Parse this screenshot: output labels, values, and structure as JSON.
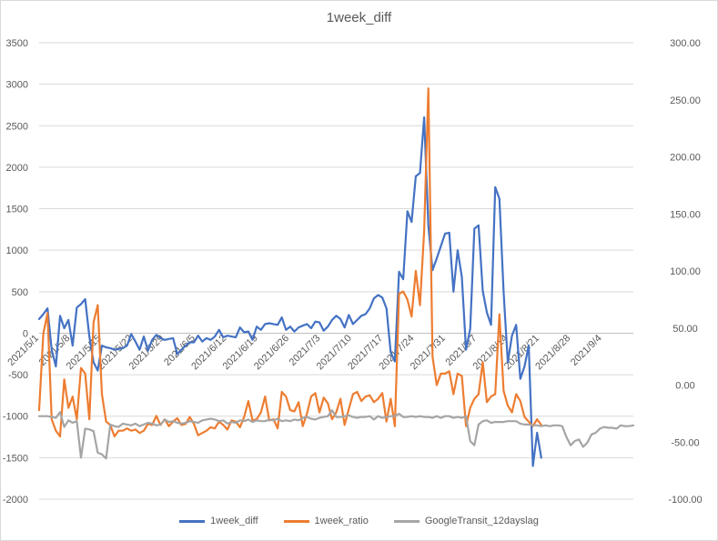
{
  "chart_data": {
    "type": "line",
    "title": "1week_diff",
    "x_tick_labels": [
      "2021/5/1",
      "2021/5/8",
      "2021/5/15",
      "2021/5/22",
      "2021/5/29",
      "2021/6/5",
      "2021/6/12",
      "2021/6/19",
      "2021/6/26",
      "2021/7/3",
      "2021/7/10",
      "2021/7/17",
      "2021/7/24",
      "2021/7/31",
      "2021/8/7",
      "2021/8/14",
      "2021/8/21",
      "2021/8/28",
      "2021/9/4"
    ],
    "x_start_date": "2021/5/1",
    "x_end_date": "2021/9/11",
    "y_left": {
      "ylim": [
        -2000,
        3500
      ],
      "ticks": [
        "-2000",
        "-1500",
        "-1000",
        "-500",
        "0",
        "500",
        "1000",
        "1500",
        "2000",
        "2500",
        "3000",
        "3500"
      ]
    },
    "y_right": {
      "ylim": [
        -100,
        300
      ],
      "ticks": [
        "-100.00",
        "-50.00",
        "0.00",
        "50.00",
        "100.00",
        "150.00",
        "200.00",
        "250.00",
        "300.00"
      ]
    },
    "grid": "horizontal",
    "legend_position": "bottom",
    "series": [
      {
        "name": "1week_diff",
        "axis": "left",
        "color": "#4472c4",
        "values": [
          170,
          230,
          300,
          -200,
          -400,
          210,
          60,
          160,
          -150,
          310,
          350,
          410,
          -40,
          -350,
          -450,
          -150,
          -170,
          -180,
          -200,
          -190,
          -180,
          -150,
          -10,
          -100,
          -200,
          -40,
          -210,
          -80,
          -20,
          -60,
          -80,
          -70,
          -60,
          -250,
          -200,
          -150,
          -110,
          -110,
          -30,
          -100,
          -60,
          -80,
          -40,
          40,
          -50,
          -30,
          -40,
          -50,
          70,
          10,
          20,
          -80,
          80,
          40,
          110,
          120,
          110,
          100,
          190,
          40,
          80,
          20,
          70,
          90,
          110,
          60,
          140,
          130,
          30,
          80,
          160,
          210,
          170,
          70,
          220,
          110,
          160,
          210,
          230,
          300,
          420,
          460,
          430,
          300,
          -230,
          -340,
          740,
          650,
          1470,
          1340,
          1890,
          1930,
          2600,
          1300,
          760,
          900,
          1050,
          1200,
          1210,
          500,
          1000,
          680,
          -200,
          50,
          1260,
          1300,
          510,
          250,
          100,
          1760,
          1620,
          500,
          -350,
          -30,
          100,
          -550,
          -400,
          -150,
          -1600,
          -1200,
          -1500
        ]
      },
      {
        "name": "1week_ratio",
        "axis": "right",
        "color": "#ed7d31",
        "values": [
          -22,
          45,
          63,
          -30,
          -40,
          -45,
          5,
          -20,
          -10,
          -30,
          15,
          10,
          -30,
          55,
          70,
          -8,
          -32,
          -35,
          -45,
          -40,
          -40,
          -38,
          -40,
          -39,
          -42,
          -40,
          -34,
          -35,
          -27,
          -35,
          -30,
          -36,
          -32,
          -29,
          -35,
          -34,
          -28,
          -34,
          -44,
          -42,
          -40,
          -37,
          -38,
          -32,
          -35,
          -39,
          -31,
          -32,
          -37,
          -28,
          -14,
          -31,
          -30,
          -24,
          -10,
          -31,
          -30,
          -38,
          -6,
          -10,
          -22,
          -23,
          -15,
          -36,
          -25,
          -10,
          -7,
          -24,
          -11,
          -16,
          -30,
          -24,
          -12,
          -35,
          -21,
          -8,
          -6,
          -14,
          -10,
          -9,
          -15,
          -12,
          -7,
          -32,
          -12,
          -36,
          80,
          82,
          75,
          60,
          100,
          70,
          135,
          260,
          25,
          0,
          10,
          10,
          12,
          -8,
          10,
          8,
          -36,
          -20,
          -12,
          -8,
          20,
          -15,
          -10,
          -8,
          62,
          -5,
          -18,
          -24,
          -8,
          -14,
          -28,
          -32,
          -36,
          -30,
          -35
        ]
      },
      {
        "name": "GoogleTransit_12dayslag",
        "axis": "left",
        "color": "#a5a5a5",
        "values": [
          -1000,
          -1000,
          -1000,
          -1010,
          -1020,
          -950,
          -1130,
          -1050,
          -1080,
          -1060,
          -1500,
          -1150,
          -1160,
          -1180,
          -1440,
          -1460,
          -1510,
          -1100,
          -1120,
          -1130,
          -1090,
          -1100,
          -1110,
          -1090,
          -1120,
          -1100,
          -1080,
          -1090,
          -1110,
          -1100,
          -1040,
          -1070,
          -1060,
          -1080,
          -1090,
          -1080,
          -1060,
          -1070,
          -1080,
          -1050,
          -1040,
          -1030,
          -1040,
          -1060,
          -1050,
          -1090,
          -1070,
          -1080,
          -1050,
          -1060,
          -1040,
          -1070,
          -1050,
          -1060,
          -1060,
          -1040,
          -1050,
          -1030,
          -1060,
          -1050,
          -1060,
          -1040,
          -1050,
          -1020,
          -1010,
          -1030,
          -1040,
          -1020,
          -1010,
          -1000,
          -930,
          -1010,
          -1010,
          -1000,
          -990,
          -1010,
          -1020,
          -1010,
          -1010,
          -1000,
          -1040,
          -1000,
          -1020,
          -1010,
          -1000,
          -1000,
          -970,
          -1010,
          -1010,
          -1000,
          -1010,
          -1000,
          -1010,
          -1010,
          -1020,
          -1000,
          -1020,
          -1000,
          -1000,
          -1020,
          -1010,
          -1020,
          -1000,
          -1300,
          -1350,
          -1100,
          -1060,
          -1050,
          -1080,
          -1070,
          -1070,
          -1070,
          -1060,
          -1060,
          -1060,
          -1090,
          -1100,
          -1100,
          -1110,
          -1110,
          -1120,
          -1110,
          -1120,
          -1110,
          -1110,
          -1120,
          -1250,
          -1350,
          -1300,
          -1280,
          -1370,
          -1320,
          -1220,
          -1200,
          -1150,
          -1130,
          -1140,
          -1140,
          -1150,
          -1110,
          -1120,
          -1120,
          -1110
        ]
      }
    ]
  }
}
